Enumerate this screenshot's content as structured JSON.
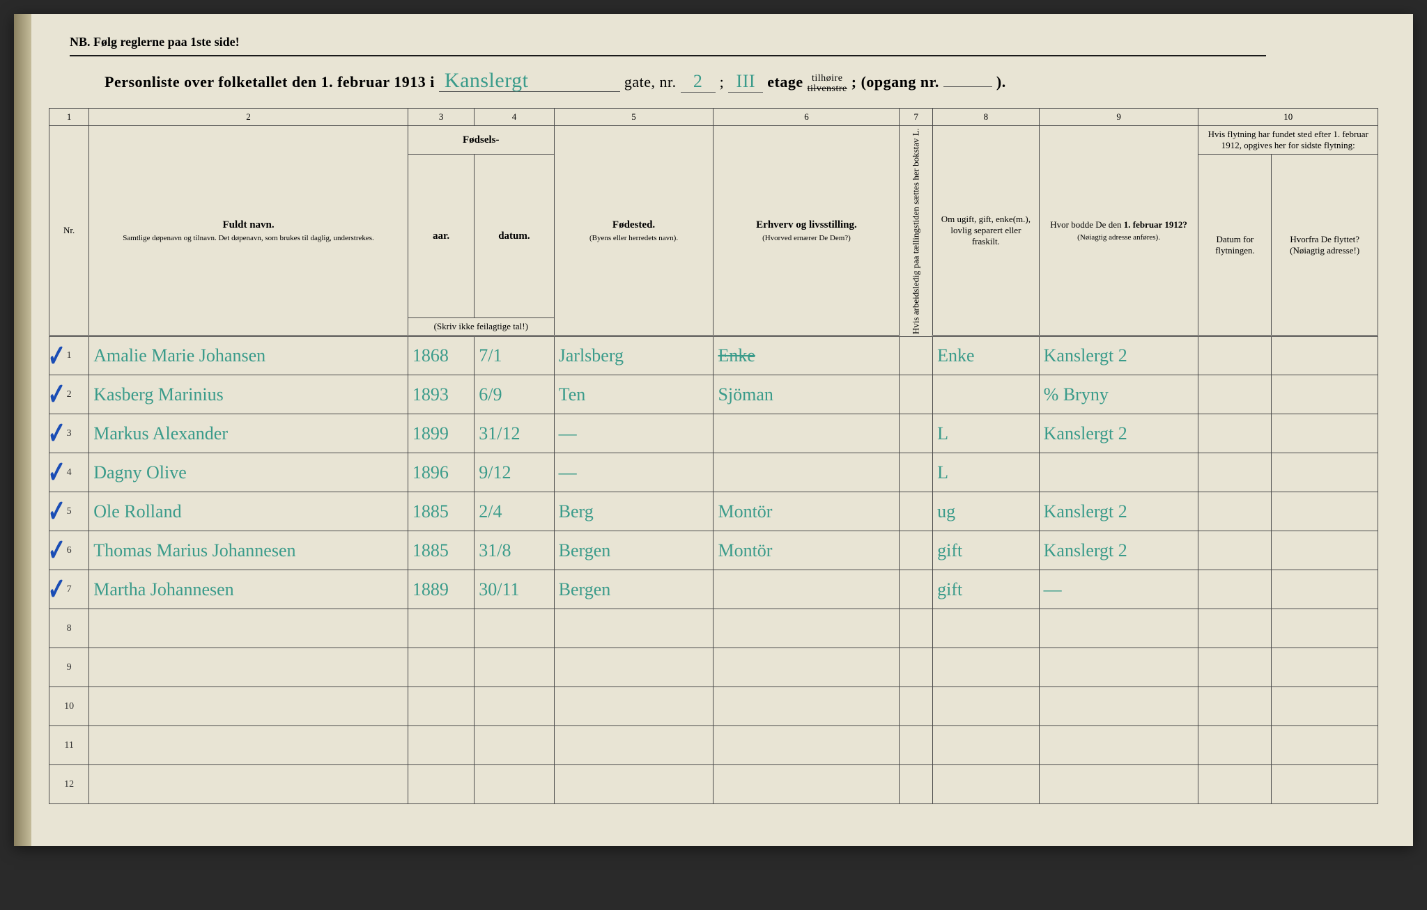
{
  "header": {
    "nb": "NB.  Følg reglerne paa 1ste side!",
    "title_prefix": "Personliste over folketallet den 1. februar 1913 i",
    "street_hand": "Kanslergt",
    "gate_label": "gate, nr.",
    "gate_nr": "2",
    "semicolon": ";",
    "etage_hand": "III",
    "etage_label": "etage",
    "tilhoire_top": "tilhøire",
    "tilhoire_bot": "tilvenstre",
    "semicolon2": ";",
    "opgang": "(opgang nr.",
    "opgang_nr": "",
    "close": ")."
  },
  "columns": {
    "c1": "1",
    "c2": "2",
    "c3": "3",
    "c4": "4",
    "c5": "5",
    "c6": "6",
    "c7": "7",
    "c8": "8",
    "c9": "9",
    "c10": "10",
    "nr": "Nr.",
    "fuldt": "Fuldt navn.",
    "fuldt_sub": "Samtlige døpenavn og tilnavn. Det døpenavn, som brukes til daglig, understrekes.",
    "fodsels": "Fødsels-",
    "aar": "aar.",
    "datum": "datum.",
    "skriv": "(Skriv ikke feilagtige tal!)",
    "fodested": "Fødested.",
    "fodested_sub": "(Byens eller herredets navn).",
    "erhverv": "Erhverv og livsstilling.",
    "erhverv_sub": "(Hvorved ernærer De Dem?)",
    "col7": "Hvis arbeidsledig paa tællingstiden sættes her bokstav L.",
    "ugift": "Om ugift, gift, enke(m.), lovlig separert eller fraskilt.",
    "hvor": "Hvor bodde De den 1. februar 1912?",
    "hvor_sub": "(Nøiagtig adresse anføres).",
    "flyt": "Hvis flytning har fundet sted efter 1. februar 1912, opgives her for sidste flytning:",
    "flyt_a": "Datum for flytningen.",
    "flyt_b": "Hvorfra De flyttet? (Nøiagtig adresse!)"
  },
  "rows": [
    {
      "nr": "1",
      "check": true,
      "name": "Amalie Marie Johansen",
      "aar": "1868",
      "dat": "7/1",
      "sted": "Jarlsberg",
      "erh_struck": "Enke",
      "erh": "",
      "c7": "",
      "c8": "Enke",
      "c9": "Kanslergt 2",
      "c10a": "",
      "c10b": ""
    },
    {
      "nr": "2",
      "check": true,
      "name": "Kasberg Marinius",
      "aar": "1893",
      "dat": "6/9",
      "sted": "Ten",
      "erh": "Sjöman",
      "c7": "",
      "c8": "",
      "c9": "% Bryny",
      "c10a": "",
      "c10b": ""
    },
    {
      "nr": "3",
      "check": true,
      "name": "Markus Alexander",
      "aar": "1899",
      "dat": "31/12",
      "sted": "—",
      "erh": "",
      "c7": "",
      "c8": "L",
      "c9": "Kanslergt 2",
      "c10a": "",
      "c10b": ""
    },
    {
      "nr": "4",
      "check": true,
      "name": "Dagny Olive",
      "aar": "1896",
      "dat": "9/12",
      "sted": "—",
      "erh": "",
      "c7": "",
      "c8": "L",
      "c9": "",
      "c10a": "",
      "c10b": ""
    },
    {
      "nr": "5",
      "check": true,
      "name": "Ole Rolland",
      "aar": "1885",
      "dat": "2/4",
      "sted": "Berg",
      "erh": "Montör",
      "c7": "",
      "c8": "ug",
      "c9": "Kanslergt 2",
      "c10a": "",
      "c10b": ""
    },
    {
      "nr": "6",
      "check": true,
      "name": "Thomas Marius Johannesen",
      "aar": "1885",
      "dat": "31/8",
      "sted": "Bergen",
      "erh": "Montör",
      "c7": "",
      "c8": "gift",
      "c9": "Kanslergt 2",
      "c10a": "",
      "c10b": ""
    },
    {
      "nr": "7",
      "check": true,
      "name": "Martha Johannesen",
      "aar": "1889",
      "dat": "30/11",
      "sted": "Bergen",
      "erh": "",
      "c7": "",
      "c8": "gift",
      "c9": "—",
      "c10a": "",
      "c10b": ""
    },
    {
      "nr": "8",
      "check": false,
      "name": "",
      "aar": "",
      "dat": "",
      "sted": "",
      "erh": "",
      "c7": "",
      "c8": "",
      "c9": "",
      "c10a": "",
      "c10b": ""
    },
    {
      "nr": "9",
      "check": false,
      "name": "",
      "aar": "",
      "dat": "",
      "sted": "",
      "erh": "",
      "c7": "",
      "c8": "",
      "c9": "",
      "c10a": "",
      "c10b": ""
    },
    {
      "nr": "10",
      "check": false,
      "name": "",
      "aar": "",
      "dat": "",
      "sted": "",
      "erh": "",
      "c7": "",
      "c8": "",
      "c9": "",
      "c10a": "",
      "c10b": ""
    },
    {
      "nr": "11",
      "check": false,
      "name": "",
      "aar": "",
      "dat": "",
      "sted": "",
      "erh": "",
      "c7": "",
      "c8": "",
      "c9": "",
      "c10a": "",
      "c10b": ""
    },
    {
      "nr": "12",
      "check": false,
      "name": "",
      "aar": "",
      "dat": "",
      "sted": "",
      "erh": "",
      "c7": "",
      "c8": "",
      "c9": "",
      "c10a": "",
      "c10b": ""
    }
  ],
  "col_widths": [
    "3%",
    "24%",
    "5%",
    "6%",
    "12%",
    "14%",
    "2.5%",
    "8%",
    "12%",
    "5.5%",
    "8%"
  ],
  "colors": {
    "paper": "#e8e4d4",
    "ink": "#1a1a1a",
    "handwriting": "#3a9b8a",
    "check": "#1a4db5",
    "rule": "#4a4a4a"
  }
}
